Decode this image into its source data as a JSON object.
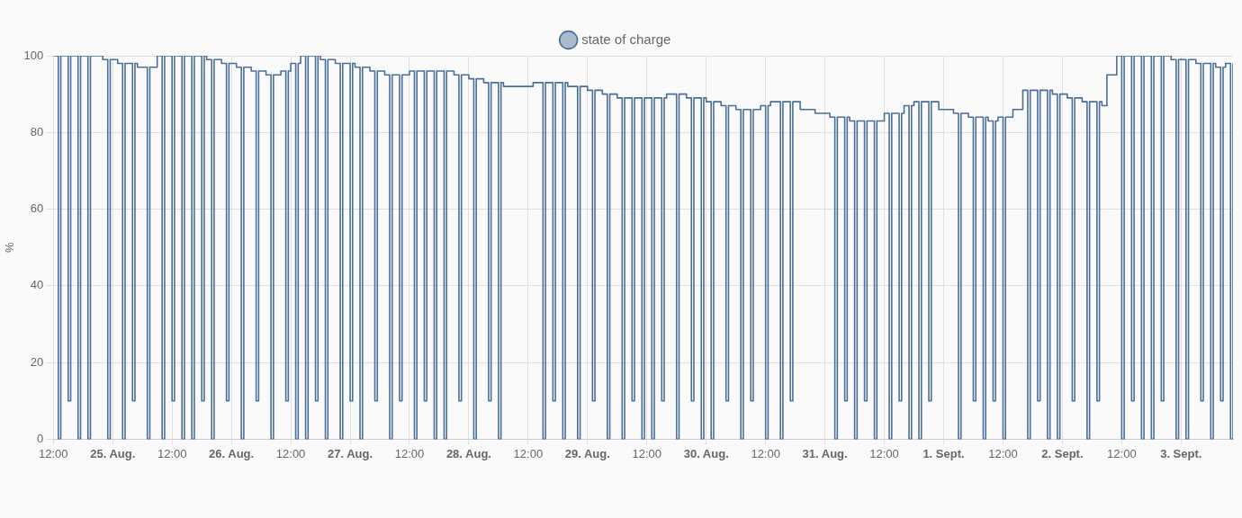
{
  "chart_data": {
    "type": "step",
    "ylabel": "%",
    "xlim": [
      "--08-24T12:00",
      "--09-03T10:30"
    ],
    "xticks": [
      {
        "value": "--08-24T12:00",
        "label": "12:00"
      },
      {
        "value": "--08-25T00:00",
        "label": "25. Aug."
      },
      {
        "value": "--08-25T12:00",
        "label": "12:00"
      },
      {
        "value": "--08-26T00:00",
        "label": "26. Aug."
      },
      {
        "value": "--08-26T12:00",
        "label": "12:00"
      },
      {
        "value": "--08-27T00:00",
        "label": "27. Aug."
      },
      {
        "value": "--08-27T12:00",
        "label": "12:00"
      },
      {
        "value": "--08-28T00:00",
        "label": "28. Aug."
      },
      {
        "value": "--08-28T12:00",
        "label": "12:00"
      },
      {
        "value": "--08-29T00:00",
        "label": "29. Aug."
      },
      {
        "value": "--08-29T12:00",
        "label": "12:00"
      },
      {
        "value": "--08-30T00:00",
        "label": "30. Aug."
      },
      {
        "value": "--08-30T12:00",
        "label": "12:00"
      },
      {
        "value": "--08-31T00:00",
        "label": "31. Aug."
      },
      {
        "value": "--08-31T12:00",
        "label": "12:00"
      },
      {
        "value": "--09-01T00:00",
        "label": "1. Sept."
      },
      {
        "value": "--09-01T12:00",
        "label": "12:00"
      },
      {
        "value": "--09-02T00:00",
        "label": "2. Sept."
      },
      {
        "value": "--09-02T12:00",
        "label": "12:00"
      },
      {
        "value": "--09-03T00:00",
        "label": "3. Sept."
      }
    ],
    "ylim": [
      0,
      100
    ],
    "yticks": [
      0,
      20,
      40,
      60,
      80,
      100
    ],
    "grid": true,
    "legend": "top",
    "marker": "none",
    "line_style": "solid",
    "series": [
      {
        "name": "state of charge",
        "color": "#4a6f9a",
        "x": [
          "--08-24T12:00",
          "--08-24T13:00",
          "--08-24T13:30",
          "--08-24T15:00",
          "--08-24T15:30",
          "--08-24T17:00",
          "--08-24T17:30",
          "--08-24T19:00",
          "--08-24T19:30",
          "--08-24T22:00",
          "--08-24T23:00",
          "--08-24T23:30",
          "--08-25T01:00",
          "--08-25T02:00",
          "--08-25T02:30",
          "--08-25T04:00",
          "--08-25T04:30",
          "--08-25T05:00",
          "--08-25T07:00",
          "--08-25T07:30",
          "--08-25T09:00",
          "--08-25T10:00",
          "--08-25T10:30",
          "--08-25T12:00",
          "--08-25T12:30",
          "--08-25T14:00",
          "--08-25T14:30",
          "--08-25T16:00",
          "--08-25T16:30",
          "--08-25T18:00",
          "--08-25T18:30",
          "--08-25T19:00",
          "--08-25T20:00",
          "--08-25T20:30",
          "--08-25T22:00",
          "--08-25T23:00",
          "--08-25T23:30",
          "--08-26T01:00",
          "--08-26T02:00",
          "--08-26T02:30",
          "--08-26T04:00",
          "--08-26T05:00",
          "--08-26T05:30",
          "--08-26T07:00",
          "--08-26T08:00",
          "--08-26T08:30",
          "--08-26T10:00",
          "--08-26T11:00",
          "--08-26T11:30",
          "--08-26T12:00",
          "--08-26T13:00",
          "--08-26T13:30",
          "--08-26T14:00",
          "--08-26T15:00",
          "--08-26T15:30",
          "--08-26T17:00",
          "--08-26T17:30",
          "--08-26T18:00",
          "--08-26T19:00",
          "--08-26T19:30",
          "--08-26T21:00",
          "--08-26T22:00",
          "--08-26T22:30",
          "--08-27T00:00",
          "--08-27T00:30",
          "--08-27T01:00",
          "--08-27T02:00",
          "--08-27T02:30",
          "--08-27T04:00",
          "--08-27T05:00",
          "--08-27T05:30",
          "--08-27T07:00",
          "--08-27T08:00",
          "--08-27T08:30",
          "--08-27T10:00",
          "--08-27T10:30",
          "--08-27T12:00",
          "--08-27T13:00",
          "--08-27T13:30",
          "--08-27T15:00",
          "--08-27T15:30",
          "--08-27T17:00",
          "--08-27T17:30",
          "--08-27T19:00",
          "--08-27T19:30",
          "--08-27T21:00",
          "--08-27T22:00",
          "--08-27T22:30",
          "--08-28T00:00",
          "--08-28T01:00",
          "--08-28T01:30",
          "--08-28T03:00",
          "--08-28T04:00",
          "--08-28T04:30",
          "--08-28T06:00",
          "--08-28T06:30",
          "--08-28T07:00",
          "--08-28T13:00",
          "--08-28T15:00",
          "--08-28T15:30",
          "--08-28T17:00",
          "--08-28T17:30",
          "--08-28T19:00",
          "--08-28T19:30",
          "--08-28T20:00",
          "--08-28T22:00",
          "--08-28T22:30",
          "--08-29T00:00",
          "--08-29T01:00",
          "--08-29T01:30",
          "--08-29T03:00",
          "--08-29T04:00",
          "--08-29T04:30",
          "--08-29T06:00",
          "--08-29T07:00",
          "--08-29T07:30",
          "--08-29T09:00",
          "--08-29T09:30",
          "--08-29T11:00",
          "--08-29T11:30",
          "--08-29T13:00",
          "--08-29T13:30",
          "--08-29T15:00",
          "--08-29T15:30",
          "--08-29T16:00",
          "--08-29T18:00",
          "--08-29T18:30",
          "--08-29T20:00",
          "--08-29T21:00",
          "--08-29T21:30",
          "--08-29T23:00",
          "--08-29T23:30",
          "--08-30T00:00",
          "--08-30T01:00",
          "--08-30T01:30",
          "--08-30T03:00",
          "--08-30T04:00",
          "--08-30T04:30",
          "--08-30T06:00",
          "--08-30T07:00",
          "--08-30T07:30",
          "--08-30T09:00",
          "--08-30T09:30",
          "--08-30T11:00",
          "--08-30T12:00",
          "--08-30T12:30",
          "--08-30T13:00",
          "--08-30T15:00",
          "--08-30T15:30",
          "--08-30T17:00",
          "--08-30T17:30",
          "--08-30T19:00",
          "--08-30T22:00",
          "--08-31T01:00",
          "--08-31T02:00",
          "--08-31T02:30",
          "--08-31T04:00",
          "--08-31T04:30",
          "--08-31T05:00",
          "--08-31T06:00",
          "--08-31T06:30",
          "--08-31T08:00",
          "--08-31T08:30",
          "--08-31T10:00",
          "--08-31T10:30",
          "--08-31T12:00",
          "--08-31T13:00",
          "--08-31T13:30",
          "--08-31T15:00",
          "--08-31T15:30",
          "--08-31T16:00",
          "--08-31T17:00",
          "--08-31T17:30",
          "--08-31T18:00",
          "--08-31T19:00",
          "--08-31T19:30",
          "--08-31T21:00",
          "--08-31T21:30",
          "--08-31T23:00",
          "--09-01T02:00",
          "--09-01T03:00",
          "--09-01T03:30",
          "--09-01T05:00",
          "--09-01T06:00",
          "--09-01T06:30",
          "--09-01T08:00",
          "--09-01T08:30",
          "--09-01T09:00",
          "--09-01T10:00",
          "--09-01T10:30",
          "--09-01T11:00",
          "--09-01T12:00",
          "--09-01T12:30",
          "--09-01T14:00",
          "--09-01T16:00",
          "--09-01T17:00",
          "--09-01T17:30",
          "--09-01T19:00",
          "--09-01T19:30",
          "--09-01T21:00",
          "--09-01T21:30",
          "--09-01T22:00",
          "--09-01T23:00",
          "--09-01T23:30",
          "--09-02T01:00",
          "--09-02T02:00",
          "--09-02T02:30",
          "--09-02T04:00",
          "--09-02T05:00",
          "--09-02T05:30",
          "--09-02T07:00",
          "--09-02T07:30",
          "--09-02T08:00",
          "--09-02T09:00",
          "--09-02T11:00",
          "--09-02T12:00",
          "--09-02T12:30",
          "--09-02T14:00",
          "--09-02T14:30",
          "--09-02T16:00",
          "--09-02T16:30",
          "--09-02T18:00",
          "--09-02T18:30",
          "--09-02T20:00",
          "--09-02T20:30",
          "--09-02T22:00",
          "--09-02T23:00",
          "--09-02T23:30",
          "--09-03T01:00",
          "--09-03T01:30",
          "--09-03T03:00",
          "--09-03T04:00",
          "--09-03T04:30",
          "--09-03T06:00",
          "--09-03T06:30",
          "--09-03T07:00",
          "--09-03T08:00",
          "--09-03T08:30",
          "--09-03T09:00",
          "--09-03T10:00",
          "--09-03T10:30"
        ],
        "values": [
          100,
          0,
          100,
          10,
          100,
          0,
          100,
          0,
          100,
          99,
          0,
          99,
          98,
          0,
          98,
          10,
          98,
          97,
          0,
          97,
          100,
          0,
          100,
          10,
          100,
          0,
          100,
          0,
          100,
          10,
          100,
          99,
          0,
          99,
          98,
          10,
          98,
          97,
          0,
          97,
          96,
          10,
          96,
          95,
          0,
          95,
          96,
          10,
          96,
          98,
          0,
          98,
          100,
          0,
          100,
          10,
          100,
          99,
          0,
          99,
          98,
          0,
          98,
          10,
          98,
          97,
          0,
          97,
          96,
          10,
          96,
          95,
          0,
          95,
          10,
          95,
          96,
          0,
          96,
          10,
          96,
          0,
          96,
          0,
          96,
          95,
          10,
          95,
          94,
          0,
          94,
          93,
          10,
          93,
          0,
          93,
          92,
          93,
          0,
          93,
          10,
          93,
          0,
          93,
          92,
          0,
          92,
          91,
          10,
          91,
          90,
          0,
          90,
          89,
          0,
          89,
          10,
          89,
          0,
          89,
          0,
          89,
          10,
          89,
          90,
          0,
          90,
          89,
          10,
          89,
          0,
          89,
          88,
          0,
          88,
          87,
          10,
          87,
          86,
          0,
          86,
          10,
          86,
          87,
          0,
          87,
          88,
          0,
          88,
          10,
          88,
          86,
          85,
          84,
          0,
          84,
          10,
          84,
          83,
          0,
          83,
          10,
          83,
          0,
          83,
          85,
          0,
          85,
          10,
          85,
          87,
          0,
          87,
          88,
          0,
          88,
          10,
          88,
          86,
          85,
          0,
          85,
          84,
          10,
          84,
          0,
          84,
          83,
          10,
          83,
          84,
          0,
          84,
          86,
          91,
          0,
          91,
          10,
          91,
          0,
          91,
          90,
          0,
          90,
          89,
          10,
          89,
          88,
          0,
          88,
          10,
          88,
          87,
          95,
          100,
          0,
          100,
          10,
          100,
          0,
          100,
          0,
          100,
          10,
          100,
          99,
          0,
          99,
          0,
          99,
          98,
          10,
          98,
          0,
          98,
          97,
          10,
          97,
          98,
          0,
          98
        ]
      }
    ]
  }
}
